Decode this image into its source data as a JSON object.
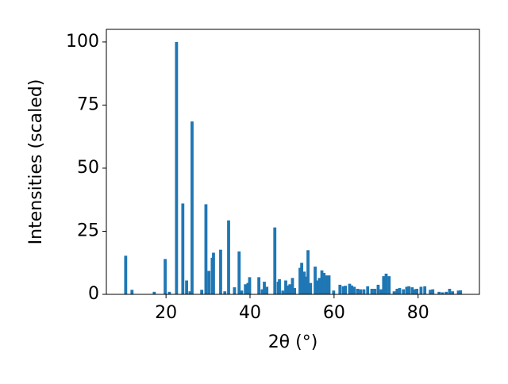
{
  "chart_data": {
    "type": "bar",
    "x_label": "2θ (°)",
    "y_label": "Intensities (scaled)",
    "color": "#1f77b4",
    "xlim": [
      5.8,
      94.6
    ],
    "ylim": [
      0,
      105
    ],
    "xticks": [
      20,
      40,
      60,
      80
    ],
    "yticks": [
      0,
      25,
      50,
      75,
      100
    ],
    "x": [
      10.4,
      11.9,
      17.2,
      19.8,
      20.8,
      22.5,
      24.0,
      24.9,
      25.7,
      26.2,
      28.5,
      29.5,
      30.2,
      31.0,
      31.3,
      33.0,
      34.0,
      34.9,
      36.3,
      37.4,
      38.0,
      38.9,
      39.5,
      39.9,
      42.1,
      42.9,
      43.4,
      44.0,
      45.9,
      46.7,
      47.0,
      47.8,
      48.5,
      48.9,
      49.5,
      50.1,
      50.6,
      51.9,
      52.3,
      52.9,
      53.3,
      53.8,
      54.4,
      55.5,
      56.1,
      56.5,
      57.1,
      57.6,
      58.2,
      58.8,
      59.9,
      61.4,
      62.2,
      62.7,
      63.7,
      64.2,
      64.8,
      65.6,
      66.3,
      67.1,
      68.0,
      69.0,
      69.7,
      70.5,
      71.2,
      71.8,
      72.4,
      73.1,
      74.3,
      75.0,
      75.6,
      76.5,
      77.3,
      77.8,
      78.6,
      79.2,
      79.7,
      80.7,
      81.6,
      82.9,
      83.5,
      85.0,
      85.8,
      86.7,
      87.5,
      88.2,
      89.6,
      90.1
    ],
    "values": [
      15.3,
      1.8,
      1,
      14,
      1,
      100,
      36,
      5.5,
      1.2,
      68.5,
      1.8,
      35.7,
      9.3,
      14.5,
      16.5,
      17.7,
      1.2,
      29.3,
      2.8,
      17,
      1.5,
      4,
      4.5,
      6.8,
      6.8,
      2,
      5,
      3,
      26.5,
      5,
      6,
      1.5,
      5.5,
      3.5,
      4,
      6.5,
      2.5,
      10.5,
      12.5,
      9,
      7,
      17.5,
      4.5,
      11,
      5.5,
      6.5,
      9.5,
      8.5,
      7.5,
      7.5,
      1.5,
      3.8,
      3.2,
      3.4,
      4.2,
      3.5,
      3,
      2.2,
      2,
      2,
      3.2,
      2.2,
      2.2,
      3.8,
      2,
      7.2,
      8.2,
      7.2,
      1.2,
      2.2,
      2.5,
      2,
      3,
      3.2,
      2.8,
      2,
      2.2,
      3,
      3.2,
      1.8,
      2,
      1,
      0.8,
      1,
      2.2,
      1.2,
      1.5,
      1.6
    ]
  }
}
